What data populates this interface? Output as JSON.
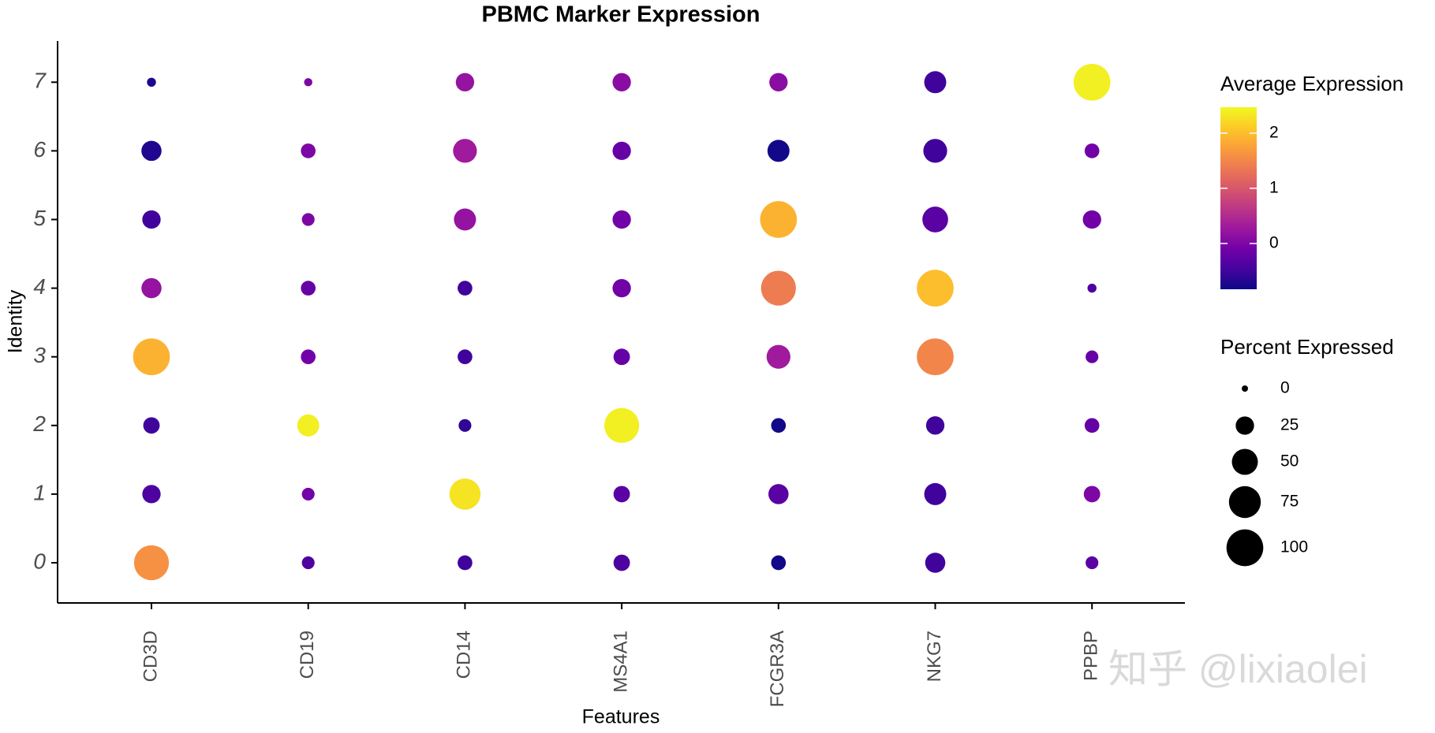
{
  "chart_data": {
    "type": "dot",
    "title": "PBMC Marker Expression",
    "x_label": "Features",
    "y_label": "Identity",
    "features": [
      "CD3D",
      "CD19",
      "CD14",
      "MS4A1",
      "FCGR3A",
      "NKG7",
      "PPBP"
    ],
    "identities": [
      "0",
      "1",
      "2",
      "3",
      "4",
      "5",
      "6",
      "7"
    ],
    "avg_expression": [
      [
        1.6,
        -0.4,
        -0.5,
        -0.4,
        -0.8,
        -0.5,
        -0.3
      ],
      [
        -0.4,
        -0.1,
        2.3,
        -0.3,
        -0.3,
        -0.5,
        0
      ],
      [
        -0.5,
        2.4,
        -0.6,
        2.4,
        -0.8,
        -0.5,
        -0.2
      ],
      [
        1.9,
        -0.1,
        -0.5,
        -0.2,
        0.3,
        1.5,
        -0.2
      ],
      [
        0.2,
        -0.2,
        -0.5,
        -0.1,
        1.4,
        2.0,
        -0.4
      ],
      [
        -0.5,
        0,
        0.2,
        -0.1,
        1.9,
        -0.3,
        -0.1
      ],
      [
        -0.7,
        0,
        0.3,
        -0.2,
        -0.8,
        -0.5,
        -0.1
      ],
      [
        -0.7,
        0,
        0.2,
        0.1,
        0.1,
        -0.5,
        2.4
      ]
    ],
    "pct_expressed": [
      [
        90,
        12,
        16,
        20,
        16,
        30,
        12
      ],
      [
        25,
        12,
        72,
        20,
        30,
        36,
        20
      ],
      [
        20,
        36,
        12,
        90,
        16,
        25,
        16
      ],
      [
        100,
        16,
        16,
        20,
        42,
        100,
        12
      ],
      [
        30,
        16,
        16,
        25,
        90,
        100,
        6
      ],
      [
        25,
        12,
        36,
        25,
        100,
        49,
        25
      ],
      [
        30,
        16,
        42,
        25,
        36,
        42,
        16
      ],
      [
        6,
        5,
        25,
        25,
        25,
        36,
        100
      ]
    ],
    "color_legend_title": "Average Expression",
    "clim": [
      -0.83,
      2.47
    ],
    "colorbar_ticks": [
      0,
      1,
      2
    ],
    "colormap": [
      "#0d0887",
      "#46039f",
      "#7201a8",
      "#9c179e",
      "#bd3786",
      "#d8576b",
      "#ed7953",
      "#fb9f3a",
      "#fdca26",
      "#f0f921"
    ],
    "size_legend_title": "Percent Expressed",
    "size_legend": [
      0,
      25,
      50,
      75,
      100
    ],
    "watermark": "知乎 @lixiaolei"
  }
}
